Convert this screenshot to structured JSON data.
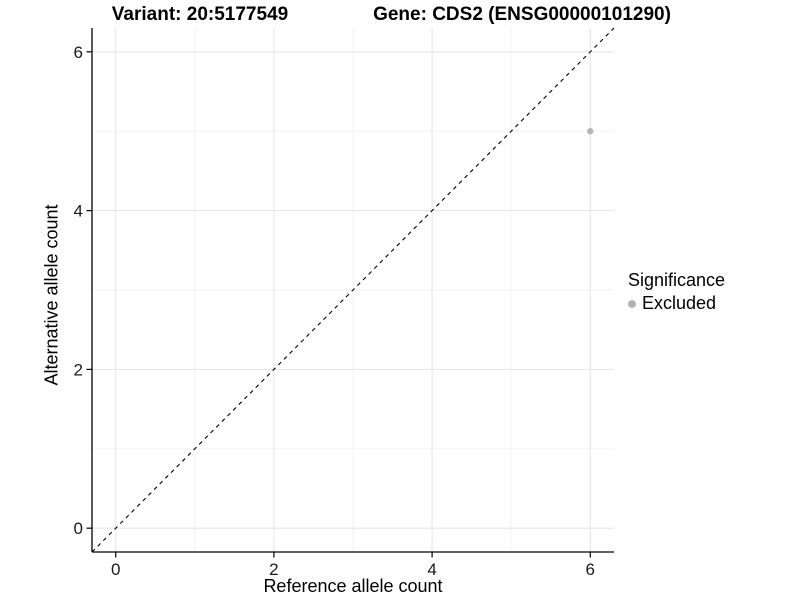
{
  "titles": {
    "variant": "Variant: 20:5177549",
    "gene": "Gene: CDS2 (ENSG00000101290)"
  },
  "chart_data": {
    "type": "scatter",
    "title_left": "Variant: 20:5177549",
    "title_right": "Gene: CDS2 (ENSG00000101290)",
    "xlabel": "Reference allele count",
    "ylabel": "Alternative allele count",
    "xlim": [
      -0.3,
      6.3
    ],
    "ylim": [
      -0.3,
      6.3
    ],
    "x_ticks": [
      0,
      2,
      4,
      6
    ],
    "y_ticks": [
      0,
      2,
      4,
      6
    ],
    "x_minor_gridlines": [
      1,
      3,
      5
    ],
    "y_minor_gridlines": [
      1,
      3,
      5
    ],
    "grid": "major+minor, light gray on white",
    "identity_line": {
      "style": "dashed",
      "color": "#000000",
      "from": [
        -0.3,
        -0.3
      ],
      "to": [
        6.3,
        6.3
      ]
    },
    "series": [
      {
        "name": "Excluded",
        "color": "#b4b4b4",
        "points": [
          {
            "x": 6,
            "y": 5
          }
        ]
      }
    ],
    "legend": {
      "title": "Significance",
      "position": "right",
      "entries": [
        {
          "label": "Excluded",
          "color": "#b4b4b4"
        }
      ]
    },
    "colors": {
      "axis_line": "#000000",
      "major_grid": "#e6e6e6",
      "minor_grid": "#f2f2f2",
      "tick_text": "#1a1a1a"
    }
  }
}
